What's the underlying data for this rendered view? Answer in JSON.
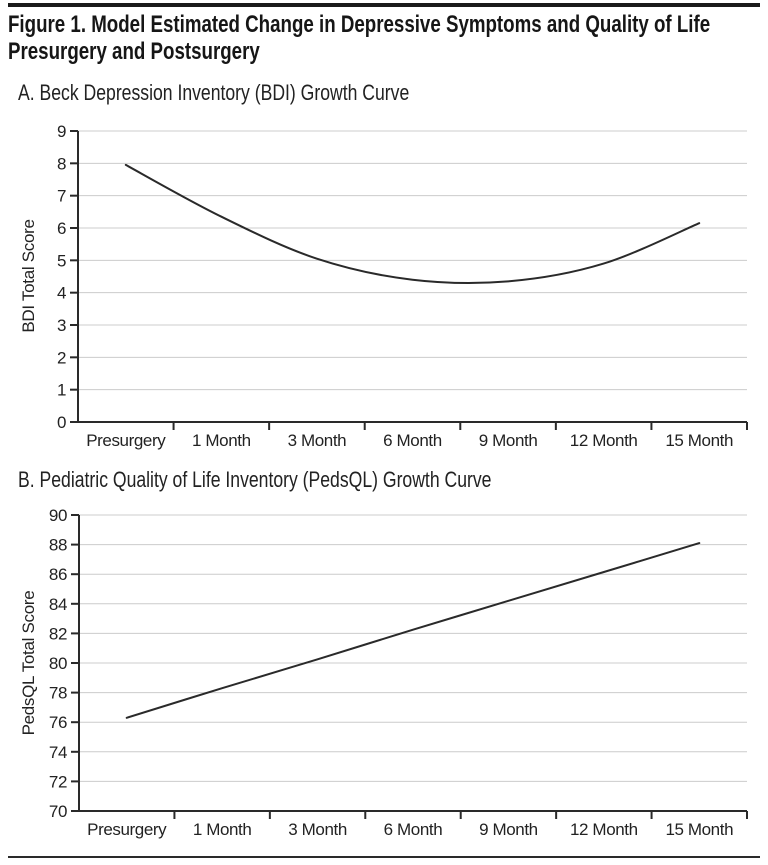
{
  "figure": {
    "title_line1": "Figure 1. Model Estimated Change in Depressive Symptoms and Quality of Life",
    "title_line2": "Presurgery and Postsurgery",
    "text_color": "#1f1f1f",
    "rule_color": "#1a1a1a"
  },
  "chart_data": [
    {
      "type": "line",
      "title": "A. Beck Depression Inventory (BDI) Growth Curve",
      "categories": [
        "Presurgery",
        "1 Month",
        "3 Month",
        "6 Month",
        "9 Month",
        "12 Month",
        "15 Month"
      ],
      "values": [
        7.95,
        6.35,
        5.05,
        4.4,
        4.35,
        4.9,
        6.15
      ],
      "xlabel": "",
      "ylabel": "BDI Total Score",
      "ylim": [
        0,
        9
      ],
      "yticks": [
        0,
        1,
        2,
        3,
        4,
        5,
        6,
        7,
        8,
        9
      ],
      "grid": "horizontal",
      "legend": "none",
      "curve_shape": "smooth U-shaped quadratic growth curve, minimum ~4.3 between 6 and 9 months",
      "line_color": "#2a2a2a",
      "axis_color": "#2a2a2a",
      "grid_color": "#cccccc"
    },
    {
      "type": "line",
      "title": "B. Pediatric Quality of Life Inventory (PedsQL) Growth Curve",
      "categories": [
        "Presurgery",
        "1 Month",
        "3 Month",
        "6 Month",
        "9 Month",
        "12 Month",
        "15 Month"
      ],
      "values": [
        76.3,
        78.3,
        80.25,
        82.25,
        84.2,
        86.15,
        88.1
      ],
      "xlabel": "",
      "ylabel": "PedsQL Total Score",
      "ylim": [
        70,
        90
      ],
      "yticks": [
        70,
        72,
        74,
        76,
        78,
        80,
        82,
        84,
        86,
        88,
        90
      ],
      "grid": "horizontal",
      "legend": "none",
      "curve_shape": "nearly straight increasing line from ~76.3 presurgery to ~88.1 at 15 months",
      "line_color": "#2a2a2a",
      "axis_color": "#2a2a2a",
      "grid_color": "#cccccc"
    }
  ]
}
